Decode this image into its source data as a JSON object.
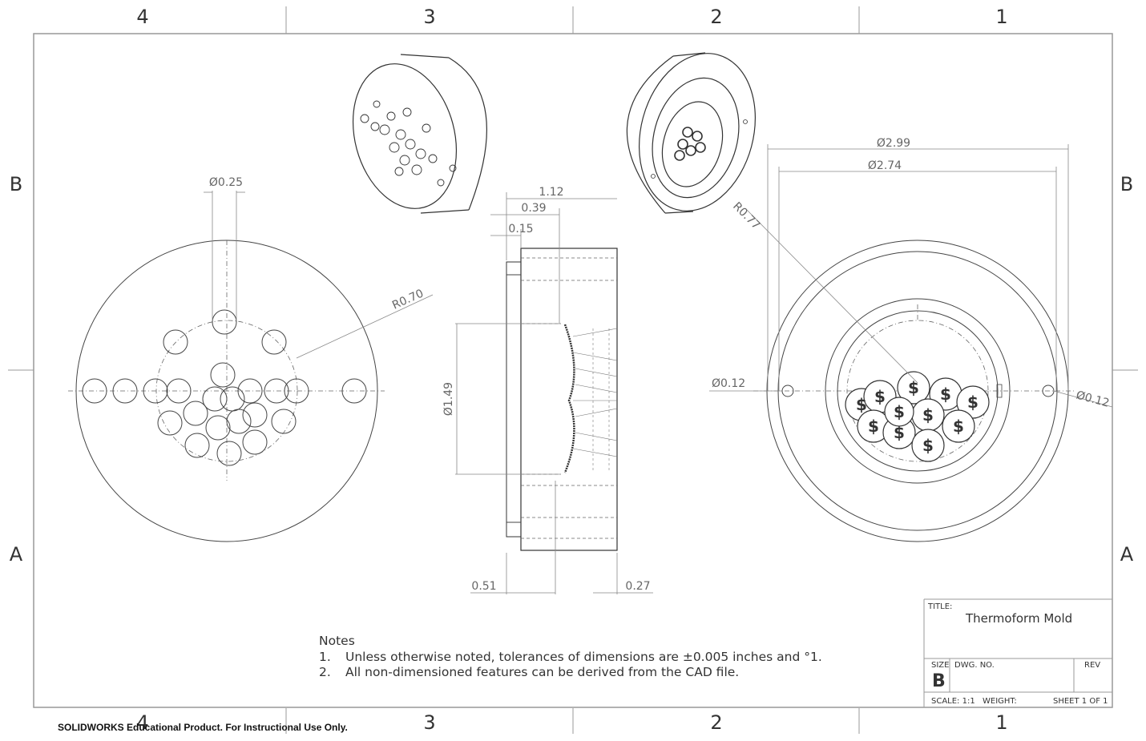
{
  "drawing": {
    "zone_columns_top": [
      "4",
      "3",
      "2",
      "1"
    ],
    "zone_columns_bottom": [
      "4",
      "3",
      "2",
      "1"
    ],
    "zone_rows_left": [
      "B",
      "A"
    ],
    "zone_rows_right": [
      "B",
      "A"
    ],
    "dimensions": {
      "hole_dia": "Ø0.25",
      "radius_left": "R0.70",
      "overall_depth": "1.12",
      "step_depth": "0.39",
      "lip_depth": "0.15",
      "cavity_dia": "Ø1.49",
      "bottom_left": "0.51",
      "bottom_right": "0.27",
      "outer_dia": "Ø2.99",
      "bolt_circle": "Ø2.74",
      "radius_right": "R0.77",
      "pin_left": "Ø0.12",
      "pin_right": "Ø0.12"
    }
  },
  "notes": {
    "heading": "Notes",
    "items": [
      {
        "num": "1.",
        "text": "Unless otherwise noted, tolerances of dimensions are ±0.005 inches and °1."
      },
      {
        "num": "2.",
        "text": "All non-dimensioned features can be derived from the CAD file."
      }
    ]
  },
  "title_block": {
    "title_label": "TITLE:",
    "title": "Thermoform Mold",
    "size_label": "SIZE",
    "dwg_label": "DWG.  NO.",
    "rev_label": "REV",
    "size": "B",
    "scale": "SCALE: 1:1",
    "weight": "WEIGHT:",
    "sheet": "SHEET 1 OF 1"
  },
  "footer": "SOLIDWORKS Educational Product. For Instructional Use Only."
}
